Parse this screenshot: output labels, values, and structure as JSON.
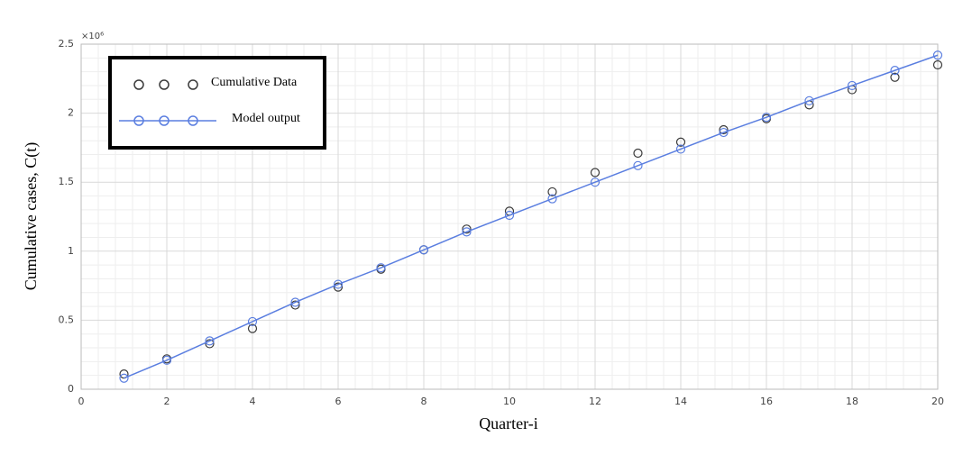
{
  "chart_data": {
    "type": "line",
    "x_label": "Quarter-i",
    "y_label": "Cumulative cases, C(t)",
    "y_multiplier": "×10⁶",
    "x": [
      1,
      2,
      3,
      4,
      5,
      6,
      7,
      8,
      9,
      10,
      11,
      12,
      13,
      14,
      15,
      16,
      17,
      18,
      19,
      20
    ],
    "series": [
      {
        "name": "Cumulative Data",
        "color": "#3a3a3a",
        "style": "markers",
        "values": [
          0.11,
          0.22,
          0.33,
          0.44,
          0.61,
          0.74,
          0.87,
          1.01,
          1.16,
          1.29,
          1.43,
          1.57,
          1.71,
          1.79,
          1.88,
          1.96,
          2.06,
          2.17,
          2.26,
          2.35
        ]
      },
      {
        "name": "Model output",
        "color": "#5a7ee0",
        "style": "line-markers",
        "values": [
          0.08,
          0.21,
          0.35,
          0.49,
          0.63,
          0.76,
          0.88,
          1.01,
          1.14,
          1.26,
          1.38,
          1.5,
          1.62,
          1.74,
          1.86,
          1.97,
          2.09,
          2.2,
          2.31,
          2.42
        ]
      }
    ],
    "xlim": [
      0,
      20
    ],
    "xticks": [
      0,
      2,
      4,
      6,
      8,
      10,
      12,
      14,
      16,
      18,
      20
    ],
    "ylim": [
      0,
      2.5
    ],
    "yticks": [
      0,
      0.5,
      1,
      1.5,
      2,
      2.5
    ],
    "grid": true,
    "minor_grid": true,
    "legend": "upper left"
  }
}
